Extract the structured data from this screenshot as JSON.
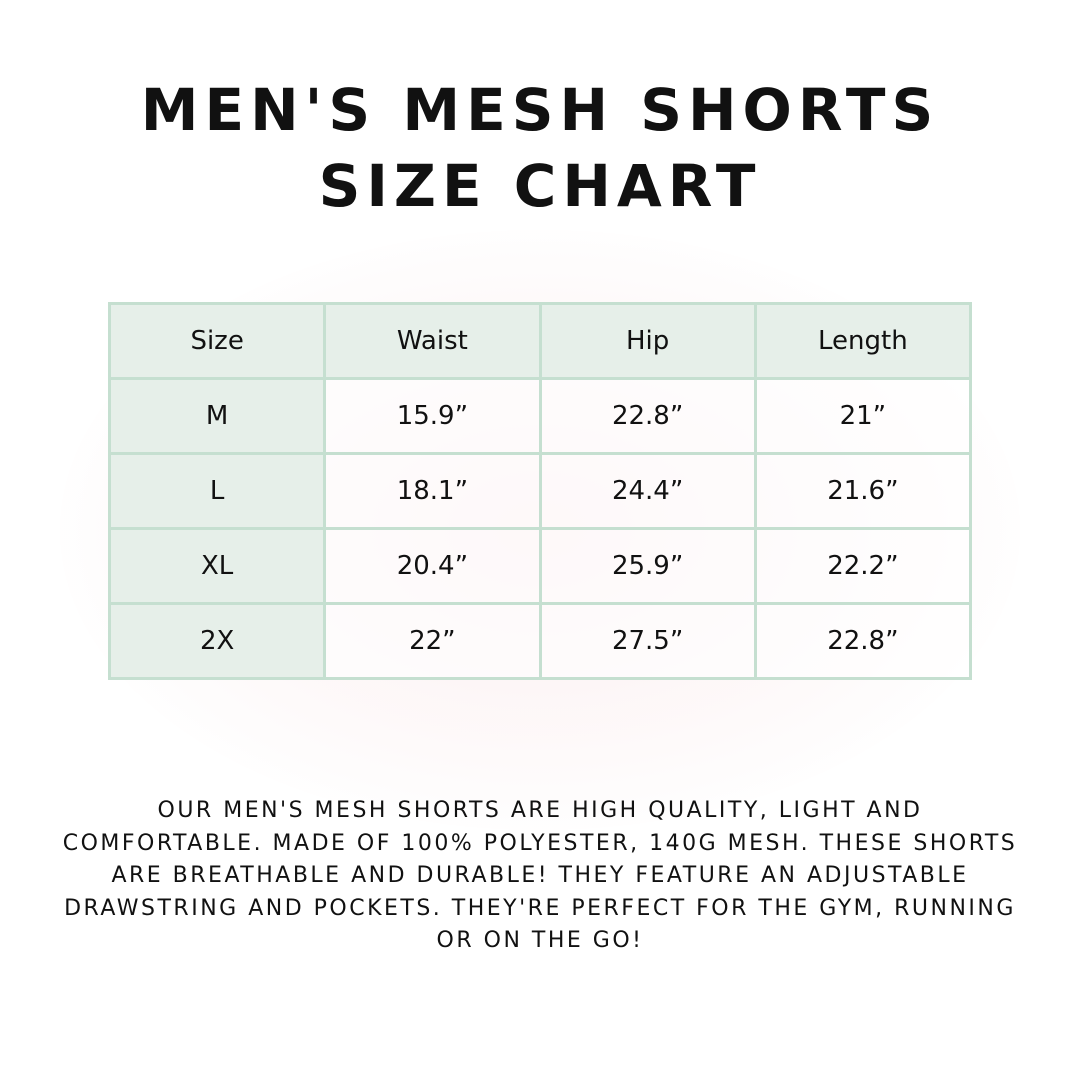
{
  "title": {
    "line1": "Men's Mesh Shorts",
    "line2": "Size Chart"
  },
  "table": {
    "headers": [
      "Size",
      "Waist",
      "Hip",
      "Length"
    ],
    "rows": [
      [
        "M",
        "15.9”",
        "22.8”",
        "21”"
      ],
      [
        "L",
        "18.1”",
        "24.4”",
        "21.6”"
      ],
      [
        "XL",
        "20.4”",
        "25.9”",
        "22.2”"
      ],
      [
        "2X",
        "22”",
        "27.5”",
        "22.8”"
      ]
    ]
  },
  "description": "Our men's mesh shorts are high quality, light and comfortable. Made of 100% polyester, 140g mesh. These shorts are breathable and durable! They feature an adjustable drawstring and pockets. They're perfect for the gym, running or on the go!",
  "colors": {
    "header_bg": "#e6efe9",
    "border": "#c5dfd0"
  }
}
